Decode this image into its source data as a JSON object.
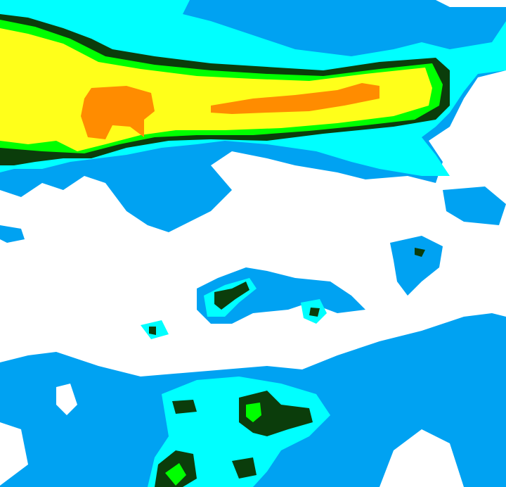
{
  "radar": {
    "colors": {
      "background": "#ffffff",
      "light": "#00a2f2",
      "moderate": "#00ffff",
      "heavy_green": "#00ff00",
      "dark_green": "#0b3d0b",
      "yellow": "#ffff1a",
      "orange": "#ff8c00"
    }
  }
}
